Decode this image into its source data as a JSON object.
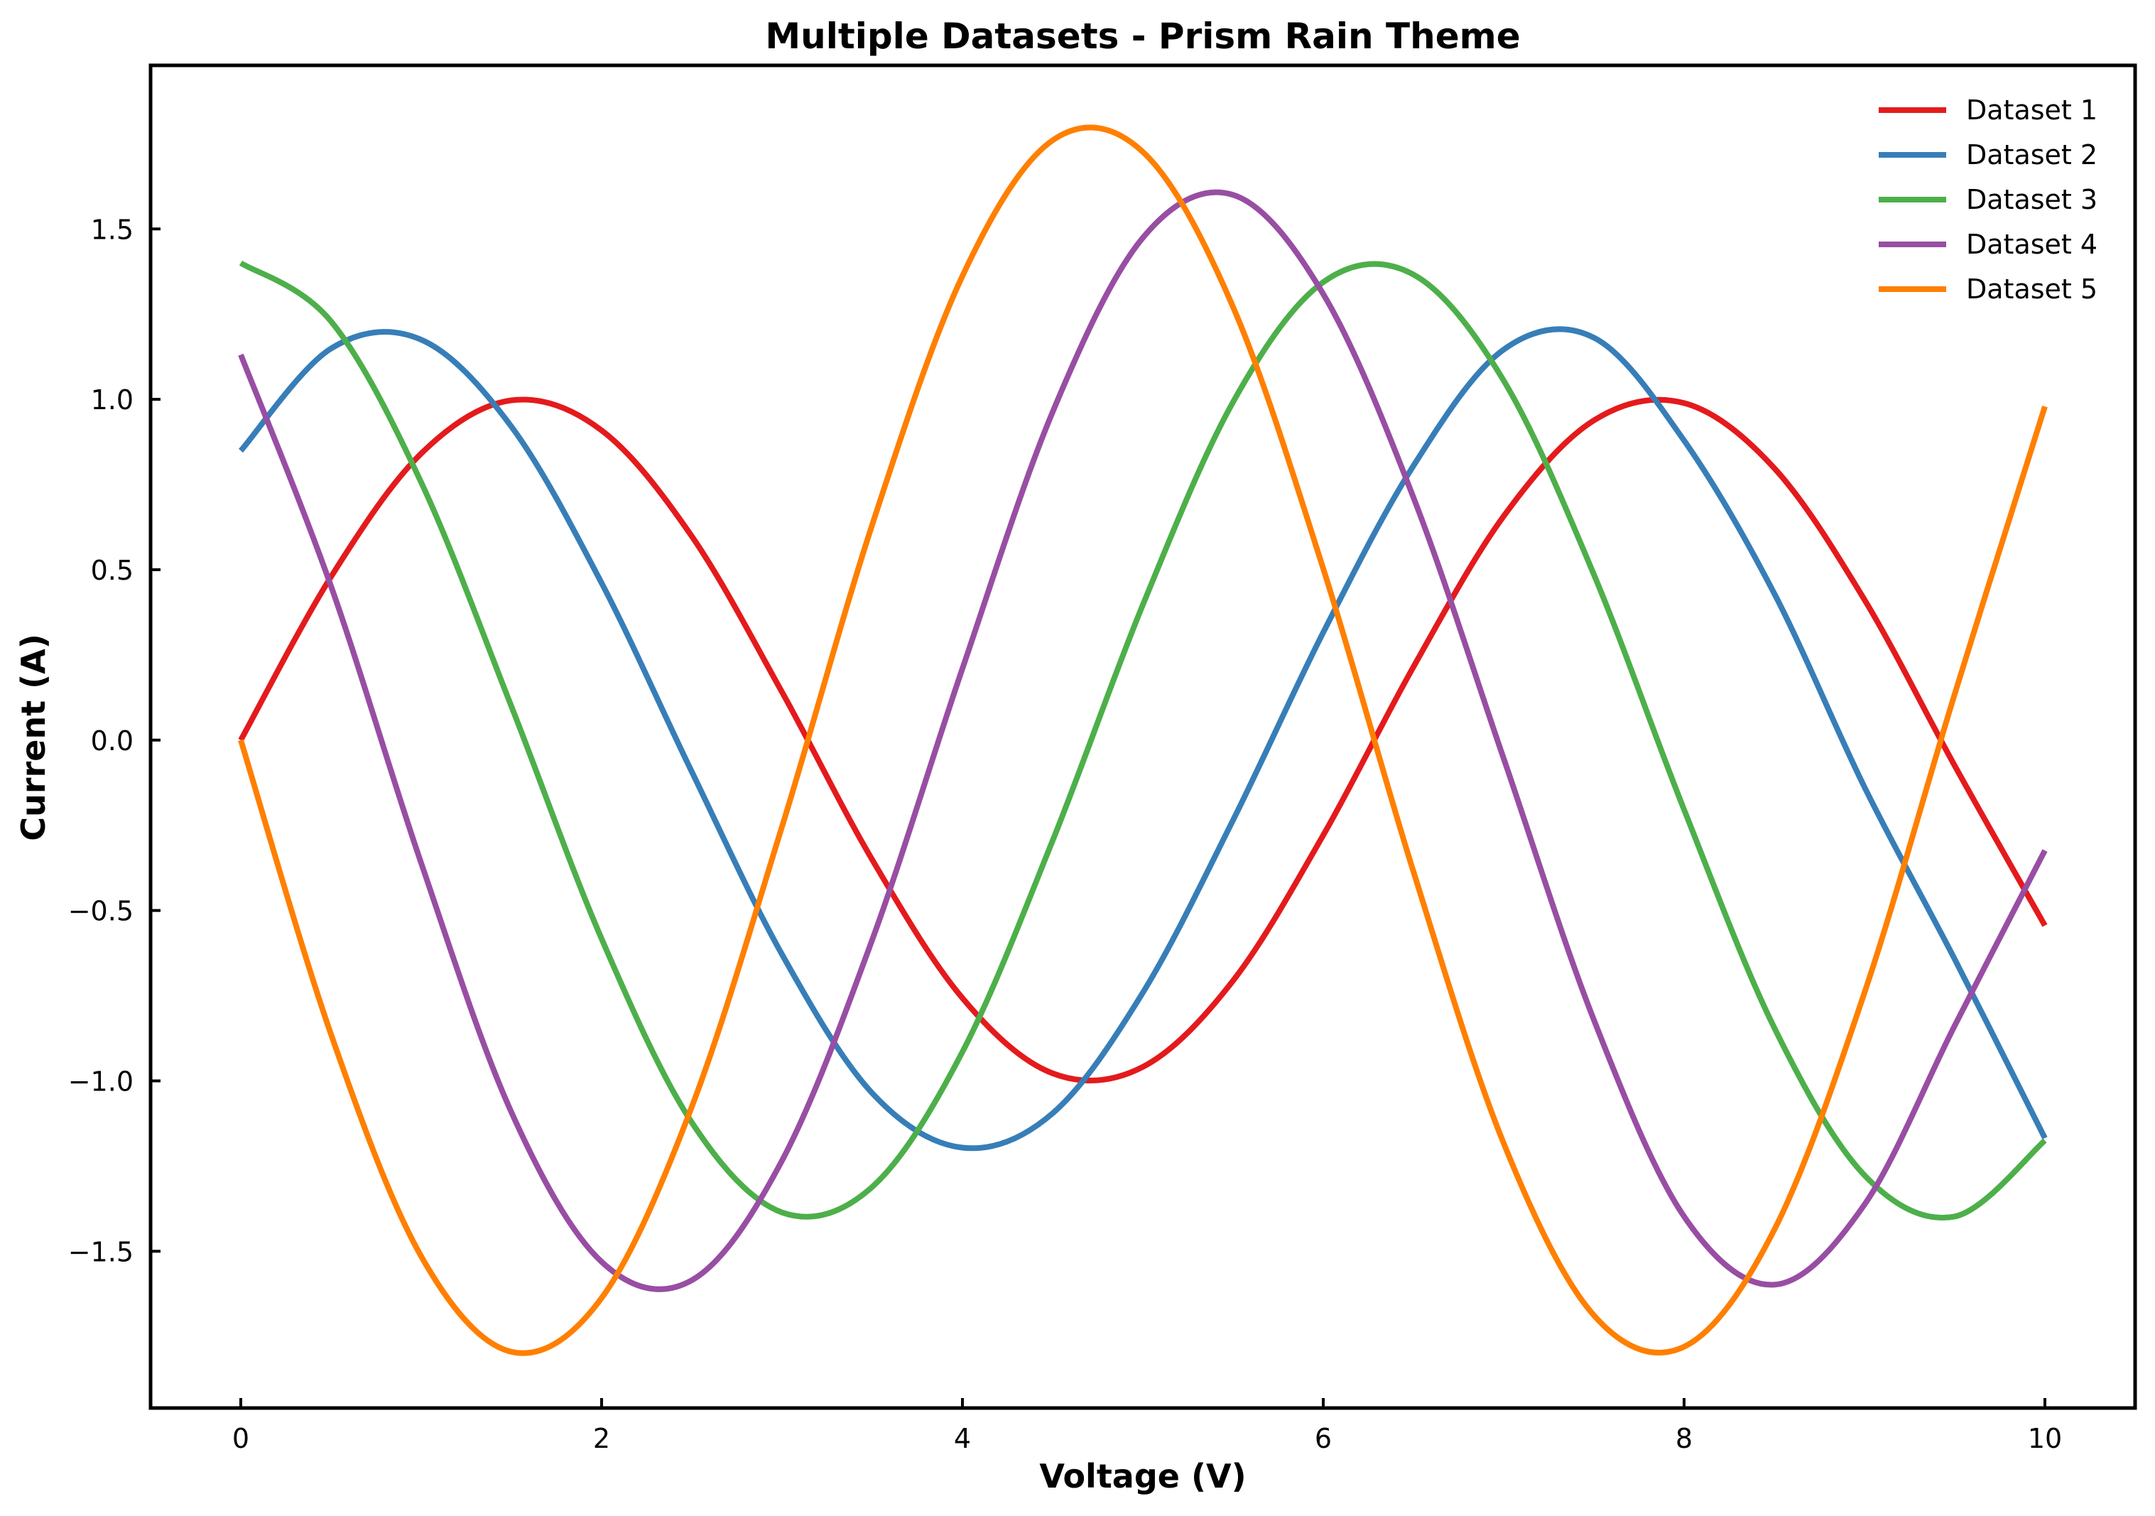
{
  "chart_data": {
    "type": "line",
    "title": "Multiple Datasets - Prism Rain Theme",
    "xlabel": "Voltage (V)",
    "ylabel": "Current (A)",
    "xlim": [
      -0.5,
      10.5
    ],
    "ylim": [
      -1.96,
      1.98
    ],
    "xticks": [
      0,
      2,
      4,
      6,
      8,
      10
    ],
    "xtick_labels": [
      "0",
      "2",
      "4",
      "6",
      "8",
      "10"
    ],
    "yticks": [
      -1.5,
      -1.0,
      -0.5,
      0.0,
      0.5,
      1.0,
      1.5
    ],
    "ytick_labels": [
      "−1.5",
      "−1.0",
      "−0.5",
      "0.0",
      "0.5",
      "1.0",
      "1.5"
    ],
    "grid": false,
    "legend_position": "top-right",
    "series": [
      {
        "name": "Dataset 1",
        "color": "#e41a1c",
        "x": [
          0,
          0.5,
          1,
          1.5,
          2,
          2.5,
          3,
          3.5,
          4,
          4.5,
          5,
          5.5,
          6,
          6.5,
          7,
          7.5,
          8,
          8.5,
          9,
          9.5,
          10
        ],
        "y": [
          0.0,
          0.479,
          0.841,
          0.997,
          0.909,
          0.598,
          0.141,
          -0.351,
          -0.757,
          -0.978,
          -0.959,
          -0.706,
          -0.279,
          0.215,
          0.657,
          0.938,
          0.989,
          0.798,
          0.412,
          -0.075,
          -0.544
        ]
      },
      {
        "name": "Dataset 2",
        "color": "#377eb8",
        "x": [
          0,
          0.5,
          1,
          1.5,
          2,
          2.5,
          3,
          3.5,
          4,
          4.5,
          5,
          5.5,
          6,
          6.5,
          7,
          7.5,
          8,
          8.5,
          9,
          9.5,
          10
        ],
        "y": [
          0.849,
          1.149,
          1.175,
          0.92,
          0.461,
          -0.093,
          -0.629,
          -1.036,
          -1.196,
          -1.095,
          -0.741,
          -0.235,
          0.316,
          0.805,
          1.146,
          1.181,
          0.879,
          0.43,
          -0.138,
          -0.643,
          -1.168
        ]
      },
      {
        "name": "Dataset 3",
        "color": "#4daf4a",
        "x": [
          0,
          0.5,
          1,
          1.5,
          2,
          2.5,
          3,
          3.5,
          4,
          4.5,
          5,
          5.5,
          6,
          6.5,
          7,
          7.5,
          8,
          8.5,
          9,
          9.5,
          10
        ],
        "y": [
          1.4,
          1.229,
          0.756,
          0.099,
          -0.583,
          -1.122,
          -1.386,
          -1.311,
          -0.915,
          -0.295,
          0.397,
          0.992,
          1.344,
          1.366,
          1.055,
          0.486,
          -0.204,
          -0.844,
          -1.277,
          -1.398,
          -1.175
        ]
      },
      {
        "name": "Dataset 4",
        "color": "#984ea3",
        "x": [
          0,
          0.5,
          1,
          1.5,
          2,
          2.5,
          3,
          3.5,
          4,
          4.5,
          5,
          5.5,
          6,
          6.5,
          7,
          7.5,
          8,
          8.5,
          9,
          9.5,
          10
        ],
        "y": [
          1.131,
          0.452,
          -0.361,
          -1.092,
          -1.531,
          -1.585,
          -1.234,
          -0.586,
          0.21,
          0.963,
          1.474,
          1.6,
          1.309,
          0.712,
          -0.054,
          -0.821,
          -1.398,
          -1.598,
          -1.363,
          -0.838,
          -0.324
        ]
      },
      {
        "name": "Dataset 5",
        "color": "#ff7f00",
        "x": [
          0,
          0.5,
          1,
          1.5,
          2,
          2.5,
          3,
          3.5,
          4,
          4.5,
          5,
          5.5,
          6,
          6.5,
          7,
          7.5,
          8,
          8.5,
          9,
          9.5,
          10
        ],
        "y": [
          0.0,
          -0.863,
          -1.515,
          -1.795,
          -1.637,
          -1.076,
          -0.254,
          0.632,
          1.362,
          1.76,
          1.726,
          1.271,
          0.503,
          -0.386,
          -1.183,
          -1.688,
          -1.78,
          -1.437,
          -0.741,
          0.135,
          0.979
        ]
      }
    ]
  }
}
